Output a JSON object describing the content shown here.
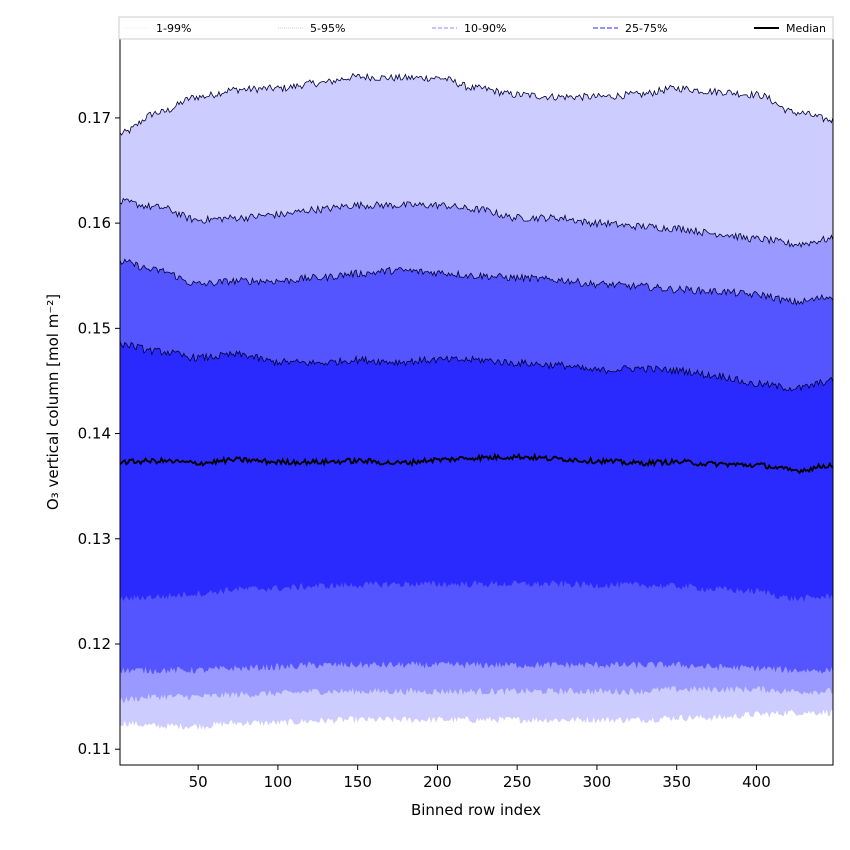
{
  "chart_data": {
    "type": "area",
    "title": "",
    "xlabel": "Binned row index",
    "ylabel": "O₃ vertical column [mol m⁻²]",
    "xlim": [
      1,
      448
    ],
    "ylim": [
      0.1085,
      0.1775
    ],
    "x_ticks": [
      50,
      100,
      150,
      200,
      250,
      300,
      350,
      400
    ],
    "y_ticks": [
      0.11,
      0.12,
      0.13,
      0.14,
      0.15,
      0.16,
      0.17
    ],
    "x_tick_labels": [
      "50",
      "100",
      "150",
      "200",
      "250",
      "300",
      "350",
      "400"
    ],
    "y_tick_labels": [
      "0.11",
      "0.12",
      "0.13",
      "0.14",
      "0.15",
      "0.16",
      "0.17"
    ],
    "grid": false,
    "legend_position": "top",
    "x": [
      1,
      25,
      50,
      75,
      100,
      125,
      150,
      175,
      200,
      225,
      250,
      275,
      300,
      325,
      350,
      375,
      400,
      425,
      448
    ],
    "bands": [
      {
        "name": "1-99%",
        "color": "#ccccff",
        "upper": [
          0.1685,
          0.1705,
          0.172,
          0.1727,
          0.1728,
          0.1733,
          0.1739,
          0.1738,
          0.1738,
          0.1728,
          0.1722,
          0.172,
          0.172,
          0.1722,
          0.1728,
          0.1725,
          0.1722,
          0.1705,
          0.1698
        ],
        "lower": [
          0.1125,
          0.1122,
          0.1122,
          0.1125,
          0.1125,
          0.1127,
          0.1128,
          0.1128,
          0.1128,
          0.1128,
          0.1128,
          0.1128,
          0.1128,
          0.1128,
          0.113,
          0.113,
          0.1133,
          0.1135,
          0.1135
        ]
      },
      {
        "name": "5-95%",
        "color": "#9999ff",
        "upper": [
          0.162,
          0.1615,
          0.1603,
          0.1605,
          0.1608,
          0.1613,
          0.1617,
          0.1617,
          0.1617,
          0.1613,
          0.1605,
          0.1605,
          0.16,
          0.1597,
          0.1595,
          0.159,
          0.1585,
          0.158,
          0.1585
        ],
        "lower": [
          0.1147,
          0.115,
          0.115,
          0.1152,
          0.1153,
          0.1155,
          0.1155,
          0.1155,
          0.1155,
          0.1155,
          0.1155,
          0.1155,
          0.1155,
          0.1155,
          0.1157,
          0.1157,
          0.1157,
          0.1155,
          0.1155
        ]
      },
      {
        "name": "10-90%",
        "color": "#5555ff",
        "upper": [
          0.1563,
          0.1555,
          0.1542,
          0.1545,
          0.1545,
          0.1548,
          0.1552,
          0.1555,
          0.1553,
          0.155,
          0.1548,
          0.1546,
          0.1542,
          0.154,
          0.1537,
          0.1535,
          0.1532,
          0.1525,
          0.153
        ],
        "lower": [
          0.1175,
          0.1175,
          0.1175,
          0.1177,
          0.1178,
          0.118,
          0.118,
          0.118,
          0.118,
          0.118,
          0.118,
          0.118,
          0.118,
          0.118,
          0.118,
          0.1178,
          0.1177,
          0.1175,
          0.1175
        ]
      },
      {
        "name": "25-75%",
        "color": "#2a2aff",
        "upper": [
          0.1485,
          0.1478,
          0.1472,
          0.1475,
          0.1468,
          0.1467,
          0.147,
          0.1468,
          0.147,
          0.147,
          0.1467,
          0.1465,
          0.146,
          0.1462,
          0.146,
          0.1455,
          0.1447,
          0.1443,
          0.145
        ],
        "lower": [
          0.1243,
          0.1245,
          0.1248,
          0.1252,
          0.1253,
          0.1255,
          0.1256,
          0.1257,
          0.1257,
          0.1257,
          0.1257,
          0.1257,
          0.1256,
          0.1256,
          0.1255,
          0.1252,
          0.125,
          0.1243,
          0.1245
        ]
      }
    ],
    "median": {
      "name": "Median",
      "color": "#000000",
      "values": [
        0.1373,
        0.1374,
        0.1372,
        0.1375,
        0.1373,
        0.1373,
        0.1374,
        0.1372,
        0.1375,
        0.1377,
        0.1378,
        0.1376,
        0.1374,
        0.1372,
        0.1373,
        0.1371,
        0.137,
        0.1365,
        0.137
      ]
    },
    "legend": [
      "1-99%",
      "5-95%",
      "10-90%",
      "25-75%",
      "Median"
    ]
  }
}
